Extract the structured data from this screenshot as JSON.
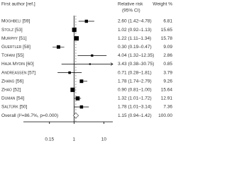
{
  "chart_data": {
    "type": "forest",
    "headers": {
      "study": "First author [ref.]",
      "estimate": "Relative risk",
      "estimate_sub": "(95% CI)",
      "weight": "Weight %"
    },
    "categories": [
      "Moghbeli [59]",
      "Stolz [53]",
      "Murphy [51]",
      "Guertler [58]",
      "Tofani [55]",
      "Haja Mydin [60]",
      "Andreassen [57]",
      "Zhang [56]",
      "Zhao [52]",
      "Duman [54]",
      "Saltürk [50]"
    ],
    "values": [
      2.6,
      1.02,
      1.22,
      0.3,
      4.04,
      3.43,
      0.71,
      1.78,
      0.9,
      1.32,
      1.78
    ],
    "lower": [
      1.42,
      0.92,
      1.11,
      0.19,
      1.32,
      0.38,
      0.28,
      1.74,
      0.81,
      1.01,
      1.01
    ],
    "upper": [
      4.78,
      1.13,
      1.34,
      0.47,
      12.35,
      30.75,
      1.81,
      2.79,
      1.0,
      1.72,
      3.14
    ],
    "value_labels": [
      "2.60 (1.42–4.78)",
      "1.02 (0.92–1.13)",
      "1.22 (1.11–1.34)",
      "0.30 (0.19–0.47)",
      "4.04 (1.32–12.35)",
      "3.43 (0.38–30.75)",
      "0.71 (0.28–1.81)",
      "1.78 (1.74–2.79)",
      "0.90 (0.81–1.00)",
      "1.32 (1.01–1.72)",
      "1.78 (1.01–3.14)"
    ],
    "weights": [
      6.81,
      15.65,
      15.78,
      9.09,
      2.86,
      0.85,
      3.79,
      9.26,
      15.64,
      12.91,
      7.36
    ],
    "weight_labels": [
      "6.81",
      "15.65",
      "15.78",
      "9.09",
      "2.86",
      "0.85",
      "3.79",
      "9.26",
      "15.64",
      "12.91",
      "7.36"
    ],
    "overall": {
      "name": "Overall (I²=86.7%, p=0.000)",
      "value": 1.15,
      "lower": 0.94,
      "upper": 1.42,
      "value_label": "1.15 (0.94–1.42)",
      "weight": 100,
      "weight_label": "100.00"
    },
    "xlim": [
      0.02,
      20
    ],
    "xticks": [
      0.15,
      1,
      10
    ],
    "log_x": true,
    "color": "#000000"
  }
}
